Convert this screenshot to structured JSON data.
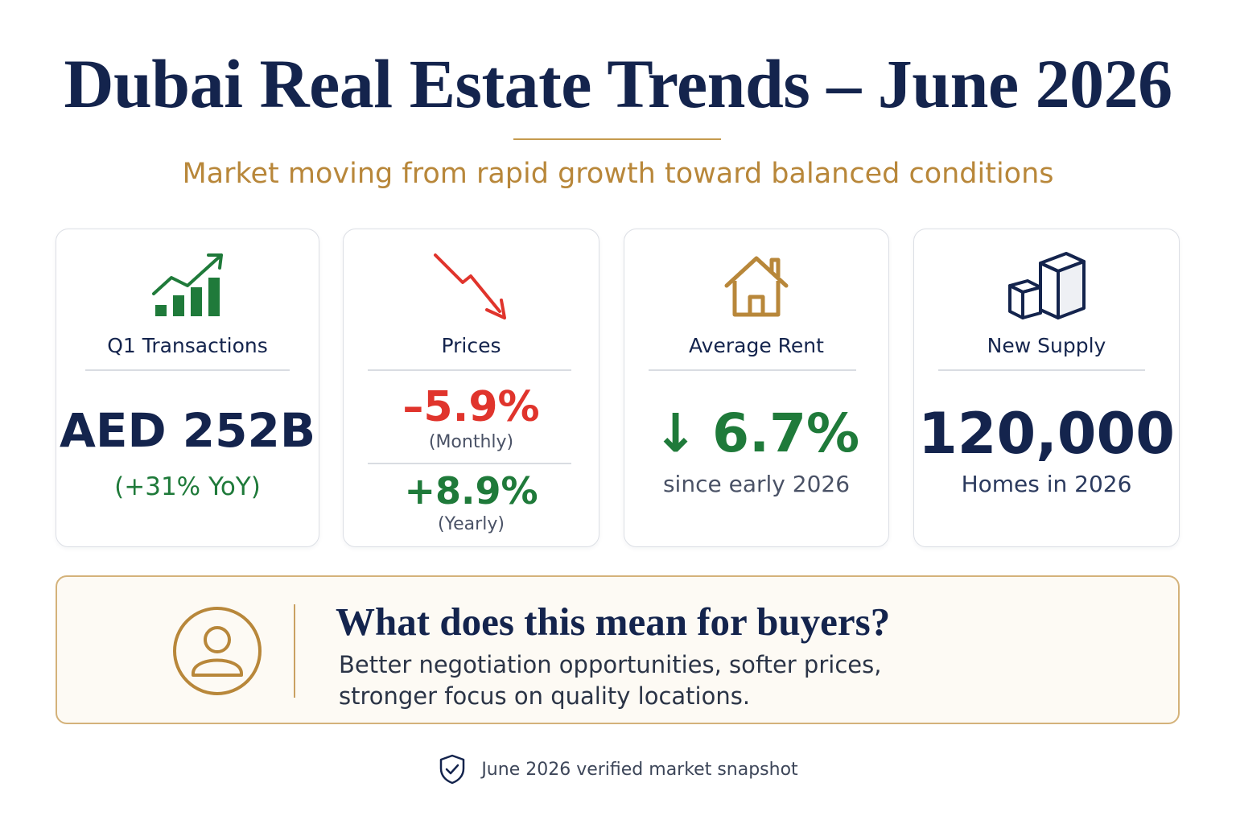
{
  "title": "Dubai Real Estate Trends – June 2026",
  "subtitle": "Market moving from rapid growth toward balanced conditions",
  "cards": [
    {
      "icon": "bar-chart-growth-icon",
      "label": "Q1 Transactions",
      "value": "AED 252B",
      "note": "(+31% YoY)"
    },
    {
      "icon": "trend-down-arrow-icon",
      "label": "Prices",
      "monthly_value": "–5.9%",
      "monthly_note": "(Monthly)",
      "yearly_value": "+8.9%",
      "yearly_note": "(Yearly)"
    },
    {
      "icon": "house-icon",
      "label": "Average Rent",
      "arrow": "↓",
      "value": "6.7%",
      "note": "since early 2026"
    },
    {
      "icon": "boxes-icon",
      "label": "New Supply",
      "value": "120,000",
      "note": "Homes in 2026"
    }
  ],
  "buyers": {
    "icon": "person-icon",
    "title": "What does this mean for buyers?",
    "line1": "Better negotiation opportunities, softer prices,",
    "line2": "stronger focus on quality locations."
  },
  "footer": {
    "icon": "shield-check-icon",
    "text": "June 2026 verified market snapshot"
  },
  "colors": {
    "navy": "#14244d",
    "gold": "#b8873a",
    "green": "#1f7a3a",
    "red": "#e0342c"
  }
}
